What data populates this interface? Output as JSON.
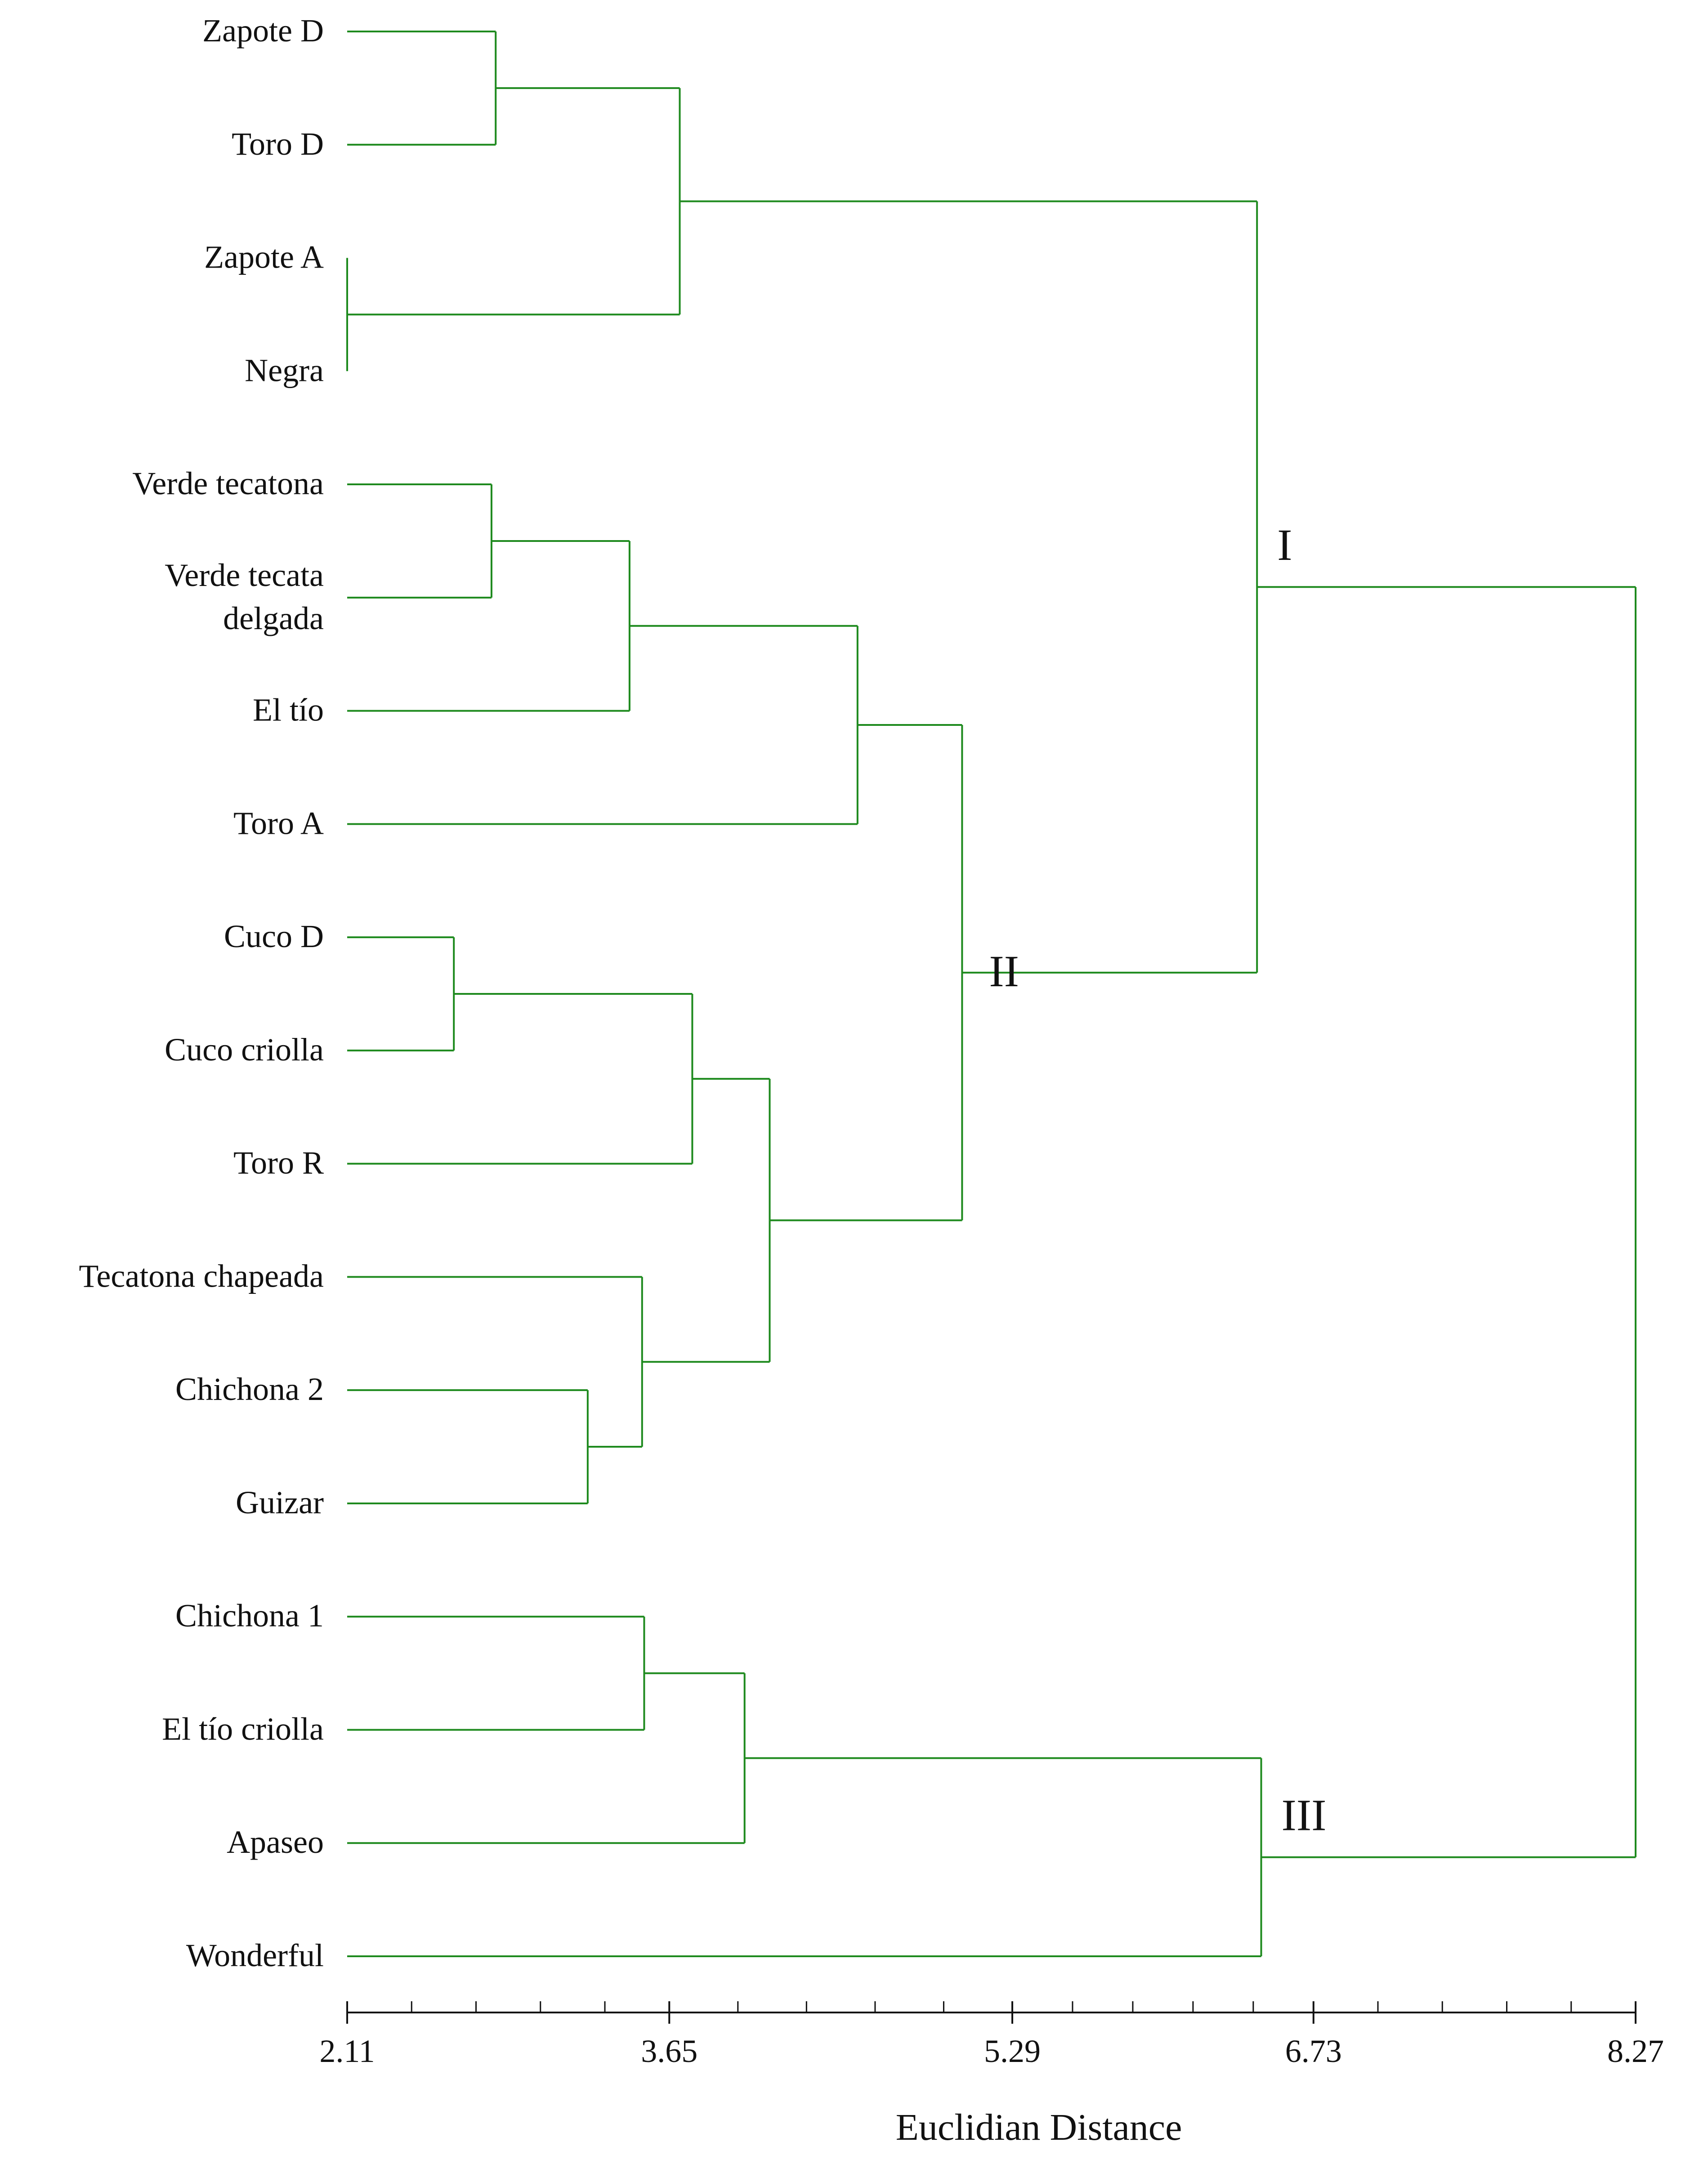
{
  "chart_data": {
    "type": "dendrogram",
    "orientation": "horizontal",
    "xlabel": "Euclidian Distance",
    "xlim": [
      2.11,
      8.27
    ],
    "x_ticks": [
      "2.11",
      "3.65",
      "5.29",
      "6.73",
      "8.27"
    ],
    "line_color": "#1e8a1e",
    "leaves": [
      "Zapote D",
      "Toro D",
      "Zapote A",
      "Negra",
      "Verde tecatona",
      "Verde tecata\ndelgada",
      "El tío",
      "Toro A",
      "Cuco D",
      "Cuco criolla",
      "Toro R",
      "Tecatona chapeada",
      "Chichona 2",
      "Guizar",
      "Chichona 1",
      "El tío criolla",
      "Apaseo",
      "Wonderful"
    ],
    "merges": [
      {
        "left": 2,
        "right": 3,
        "height": 2.11
      },
      {
        "left": 0,
        "right": 1,
        "height": 2.82
      },
      {
        "left": 18,
        "right": 19,
        "height": 3.7
      },
      {
        "left": 20,
        "right": 20,
        "height": 3.7
      },
      {
        "left": 4,
        "right": 5,
        "height": 2.8
      },
      {
        "left": 22,
        "right": 6,
        "height": 3.46
      },
      {
        "left": 23,
        "right": 7,
        "height": 4.55
      },
      {
        "left": 8,
        "right": 9,
        "height": 2.62
      },
      {
        "left": 25,
        "right": 10,
        "height": 3.76
      },
      {
        "left": 12,
        "right": 13,
        "height": 3.26
      },
      {
        "left": 11,
        "right": 27,
        "height": 3.52
      },
      {
        "left": 26,
        "right": 28,
        "height": 4.13
      },
      {
        "left": 24,
        "right": 29,
        "height": 5.05
      },
      {
        "left": 21,
        "right": 30,
        "height": 6.46
      },
      {
        "left": 14,
        "right": 15,
        "height": 3.53
      },
      {
        "left": 32,
        "right": 16,
        "height": 4.01
      },
      {
        "left": 33,
        "right": 17,
        "height": 6.48
      },
      {
        "left": 31,
        "right": 34,
        "height": 8.27
      }
    ],
    "cluster_labels": [
      {
        "text": "I",
        "node": 31,
        "side": "top"
      },
      {
        "text": "II",
        "node": 30,
        "side": "right"
      },
      {
        "text": "III",
        "node": 34,
        "side": "top"
      }
    ]
  }
}
